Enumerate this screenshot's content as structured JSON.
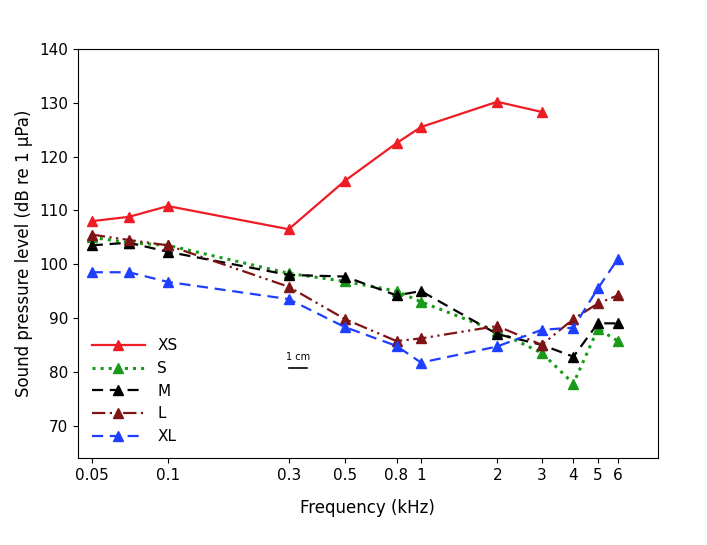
{
  "chart_data": {
    "type": "line",
    "x_label": "Frequency (kHz)",
    "y_label": "Sound pressure level (dB re 1 µPa)",
    "annotation": "1 cm",
    "log": "x",
    "grid": false,
    "legend": "lower left",
    "x": [
      0.05,
      0.07,
      0.1,
      0.3,
      0.5,
      0.8,
      1,
      2,
      3,
      4,
      5,
      6
    ],
    "xlim": [
      0.044,
      8.6
    ],
    "xticks": [
      0.05,
      0.1,
      0.3,
      0.5,
      0.8,
      1,
      2,
      3,
      4,
      5,
      6
    ],
    "ylim": [
      64,
      140
    ],
    "yticks": [
      70,
      80,
      90,
      100,
      110,
      120,
      130,
      140
    ],
    "series": [
      {
        "name": "XS",
        "color": "#ee1c25",
        "marker": "triangle",
        "line_style": "solid",
        "values": [
          108,
          108.8,
          110.8,
          106.5,
          115.5,
          122.5,
          125.5,
          130.2,
          128.3,
          null,
          null,
          null
        ]
      },
      {
        "name": "S",
        "color": "#1a9a1a",
        "marker": "triangle",
        "line_style": "dotted",
        "values": [
          105,
          104,
          103.5,
          98.3,
          96.8,
          95,
          93,
          87.5,
          83.5,
          77.8,
          88,
          85.7
        ]
      },
      {
        "name": "M",
        "color": "#000000",
        "marker": "triangle",
        "line_style": "dashed",
        "values": [
          103.5,
          104,
          102.3,
          98,
          97.7,
          94.2,
          95,
          87,
          85,
          82.8,
          89,
          89
        ]
      },
      {
        "name": "L",
        "color": "#7f1315",
        "marker": "triangle",
        "line_style": "dashdotdot",
        "values": [
          105.5,
          104.5,
          103.5,
          95.8,
          89.8,
          85.7,
          86.2,
          88.5,
          85,
          89.8,
          92.7,
          94.2
        ]
      },
      {
        "name": "XL",
        "color": "#1f3fff",
        "marker": "triangle",
        "line_style": "dashed",
        "values": [
          98.5,
          98.5,
          96.7,
          93.5,
          88.3,
          84.8,
          81.7,
          84.7,
          87.8,
          88.2,
          95.5,
          101
        ]
      }
    ]
  }
}
